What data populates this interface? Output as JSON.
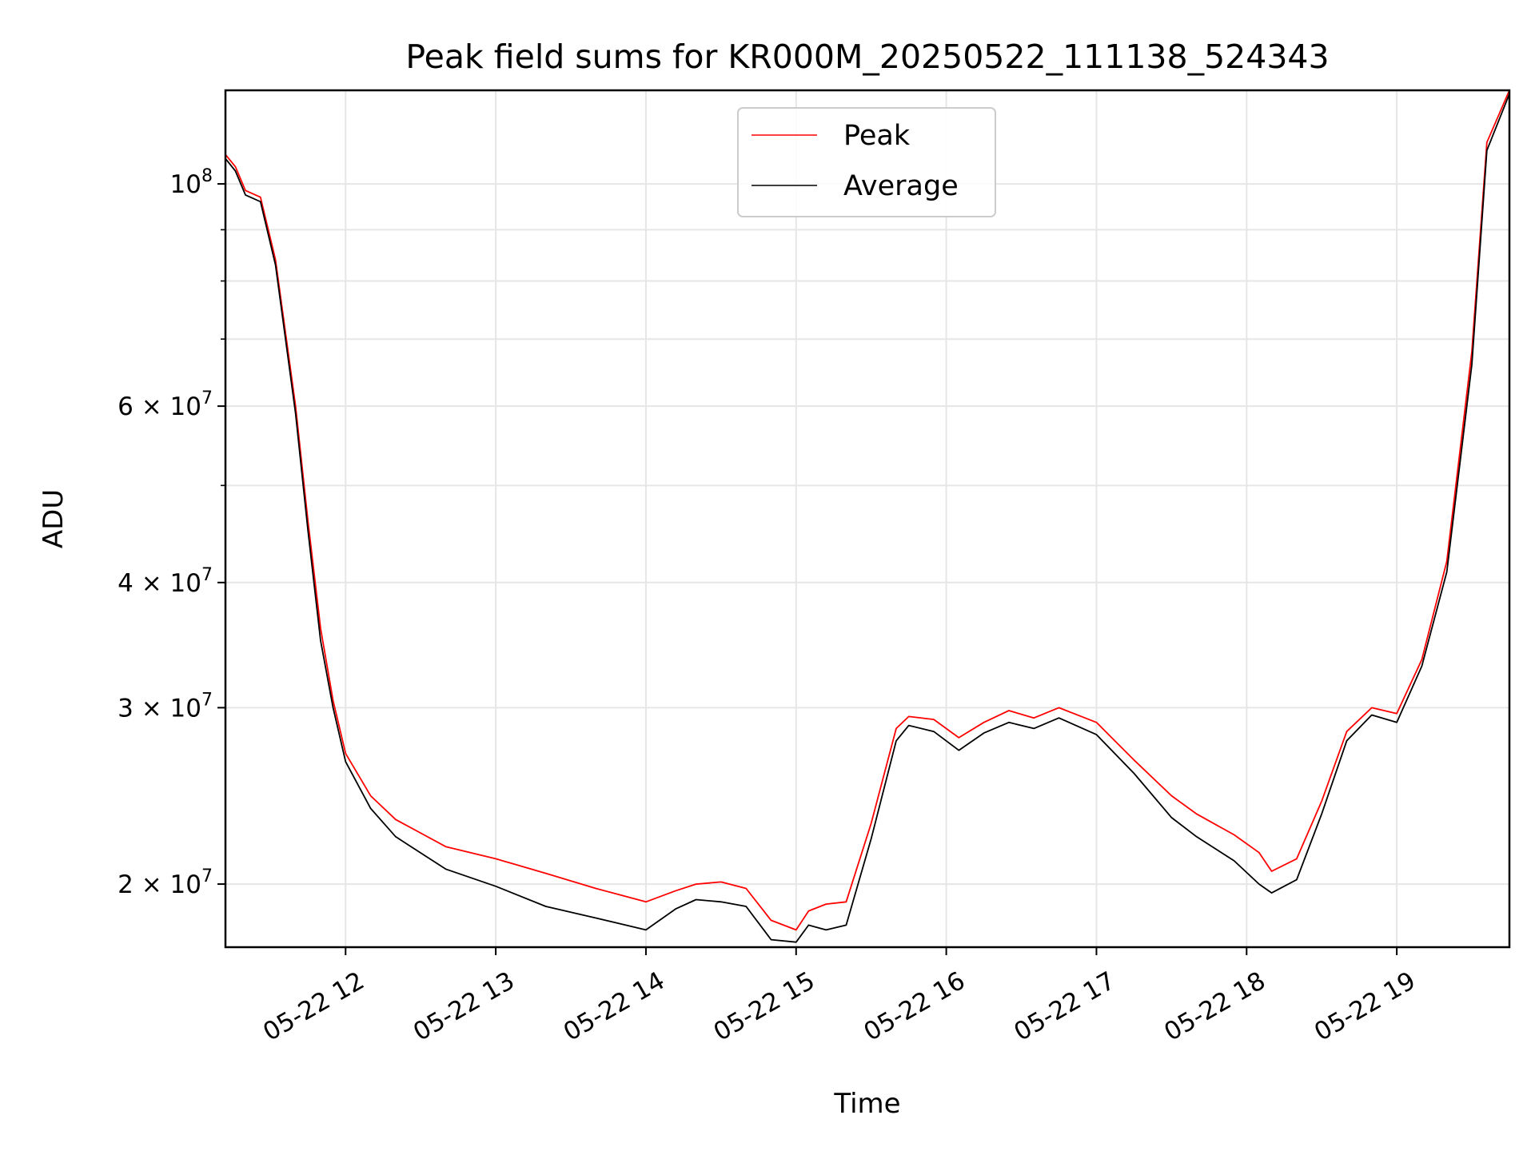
{
  "chart_data": {
    "type": "line",
    "title": "Peak field sums for KR000M_20250522_111138_524343",
    "xlabel": "Time",
    "ylabel": "ADU",
    "y_scale": "log",
    "ylim": [
      17300000,
      124000000
    ],
    "xlim": [
      "2025-05-22 11:12",
      "2025-05-22 19:45"
    ],
    "grid": true,
    "legend_position": "upper center",
    "x_ticks": [
      {
        "value": "2025-05-22 12:00",
        "label": "05-22 12"
      },
      {
        "value": "2025-05-22 13:00",
        "label": "05-22 13"
      },
      {
        "value": "2025-05-22 14:00",
        "label": "05-22 14"
      },
      {
        "value": "2025-05-22 15:00",
        "label": "05-22 15"
      },
      {
        "value": "2025-05-22 16:00",
        "label": "05-22 16"
      },
      {
        "value": "2025-05-22 17:00",
        "label": "05-22 17"
      },
      {
        "value": "2025-05-22 18:00",
        "label": "05-22 18"
      },
      {
        "value": "2025-05-22 19:00",
        "label": "05-22 19"
      }
    ],
    "y_ticks": [
      {
        "value": 20000000,
        "base": "2 × 10",
        "exp": "7"
      },
      {
        "value": 30000000,
        "base": "3 × 10",
        "exp": "7"
      },
      {
        "value": 40000000,
        "base": "4 × 10",
        "exp": "7"
      },
      {
        "value": 60000000,
        "base": "6 × 10",
        "exp": "7"
      },
      {
        "value": 100000000,
        "base": "10",
        "exp": "8"
      }
    ],
    "y_minor_ticks": [
      50000000,
      70000000,
      80000000,
      90000000
    ],
    "series": [
      {
        "name": "Peak",
        "color": "#ff0000",
        "x": [
          "2025-05-22 11:12",
          "2025-05-22 11:16",
          "2025-05-22 11:20",
          "2025-05-22 11:26",
          "2025-05-22 11:32",
          "2025-05-22 11:40",
          "2025-05-22 11:45",
          "2025-05-22 11:50",
          "2025-05-22 11:55",
          "2025-05-22 12:00",
          "2025-05-22 12:10",
          "2025-05-22 12:20",
          "2025-05-22 12:40",
          "2025-05-22 13:00",
          "2025-05-22 13:20",
          "2025-05-22 13:40",
          "2025-05-22 14:00",
          "2025-05-22 14:12",
          "2025-05-22 14:20",
          "2025-05-22 14:30",
          "2025-05-22 14:40",
          "2025-05-22 14:50",
          "2025-05-22 15:00",
          "2025-05-22 15:05",
          "2025-05-22 15:12",
          "2025-05-22 15:20",
          "2025-05-22 15:30",
          "2025-05-22 15:40",
          "2025-05-22 15:45",
          "2025-05-22 15:55",
          "2025-05-22 16:05",
          "2025-05-22 16:15",
          "2025-05-22 16:25",
          "2025-05-22 16:35",
          "2025-05-22 16:45",
          "2025-05-22 17:00",
          "2025-05-22 17:15",
          "2025-05-22 17:30",
          "2025-05-22 17:40",
          "2025-05-22 17:55",
          "2025-05-22 18:05",
          "2025-05-22 18:10",
          "2025-05-22 18:20",
          "2025-05-22 18:30",
          "2025-05-22 18:40",
          "2025-05-22 18:50",
          "2025-05-22 19:00",
          "2025-05-22 19:10",
          "2025-05-22 19:20",
          "2025-05-22 19:30",
          "2025-05-22 19:36",
          "2025-05-22 19:45"
        ],
        "values": [
          107000000,
          104000000,
          98500000,
          97000000,
          84000000,
          60000000,
          46000000,
          36000000,
          30500000,
          27000000,
          24500000,
          23200000,
          21800000,
          21200000,
          20500000,
          19800000,
          19200000,
          19700000,
          20000000,
          20100000,
          19800000,
          18400000,
          18000000,
          18800000,
          19100000,
          19200000,
          23000000,
          28600000,
          29400000,
          29200000,
          28000000,
          29000000,
          29800000,
          29300000,
          30000000,
          29000000,
          26600000,
          24500000,
          23500000,
          22400000,
          21500000,
          20600000,
          21200000,
          24200000,
          28400000,
          30000000,
          29600000,
          33500000,
          42000000,
          68000000,
          110000000,
          124000000
        ]
      },
      {
        "name": "Average",
        "color": "#000000",
        "x": [
          "2025-05-22 11:12",
          "2025-05-22 11:16",
          "2025-05-22 11:20",
          "2025-05-22 11:26",
          "2025-05-22 11:32",
          "2025-05-22 11:40",
          "2025-05-22 11:45",
          "2025-05-22 11:50",
          "2025-05-22 11:55",
          "2025-05-22 12:00",
          "2025-05-22 12:10",
          "2025-05-22 12:20",
          "2025-05-22 12:40",
          "2025-05-22 13:00",
          "2025-05-22 13:20",
          "2025-05-22 13:40",
          "2025-05-22 14:00",
          "2025-05-22 14:12",
          "2025-05-22 14:20",
          "2025-05-22 14:30",
          "2025-05-22 14:40",
          "2025-05-22 14:50",
          "2025-05-22 15:00",
          "2025-05-22 15:05",
          "2025-05-22 15:12",
          "2025-05-22 15:20",
          "2025-05-22 15:30",
          "2025-05-22 15:40",
          "2025-05-22 15:45",
          "2025-05-22 15:55",
          "2025-05-22 16:05",
          "2025-05-22 16:15",
          "2025-05-22 16:25",
          "2025-05-22 16:35",
          "2025-05-22 16:45",
          "2025-05-22 17:00",
          "2025-05-22 17:15",
          "2025-05-22 17:30",
          "2025-05-22 17:40",
          "2025-05-22 17:55",
          "2025-05-22 18:05",
          "2025-05-22 18:10",
          "2025-05-22 18:20",
          "2025-05-22 18:30",
          "2025-05-22 18:40",
          "2025-05-22 18:50",
          "2025-05-22 19:00",
          "2025-05-22 19:10",
          "2025-05-22 19:20",
          "2025-05-22 19:30",
          "2025-05-22 19:36",
          "2025-05-22 19:45"
        ],
        "values": [
          106000000,
          103000000,
          97500000,
          96000000,
          83000000,
          59000000,
          45000000,
          35000000,
          30000000,
          26500000,
          23800000,
          22300000,
          20700000,
          19900000,
          19000000,
          18500000,
          18000000,
          18900000,
          19300000,
          19200000,
          19000000,
          17600000,
          17500000,
          18200000,
          18000000,
          18200000,
          22200000,
          27800000,
          28800000,
          28400000,
          27200000,
          28300000,
          29000000,
          28600000,
          29300000,
          28200000,
          25800000,
          23300000,
          22300000,
          21100000,
          20000000,
          19600000,
          20200000,
          23500000,
          27800000,
          29500000,
          29000000,
          33000000,
          41000000,
          66000000,
          108000000,
          123000000
        ]
      }
    ]
  }
}
